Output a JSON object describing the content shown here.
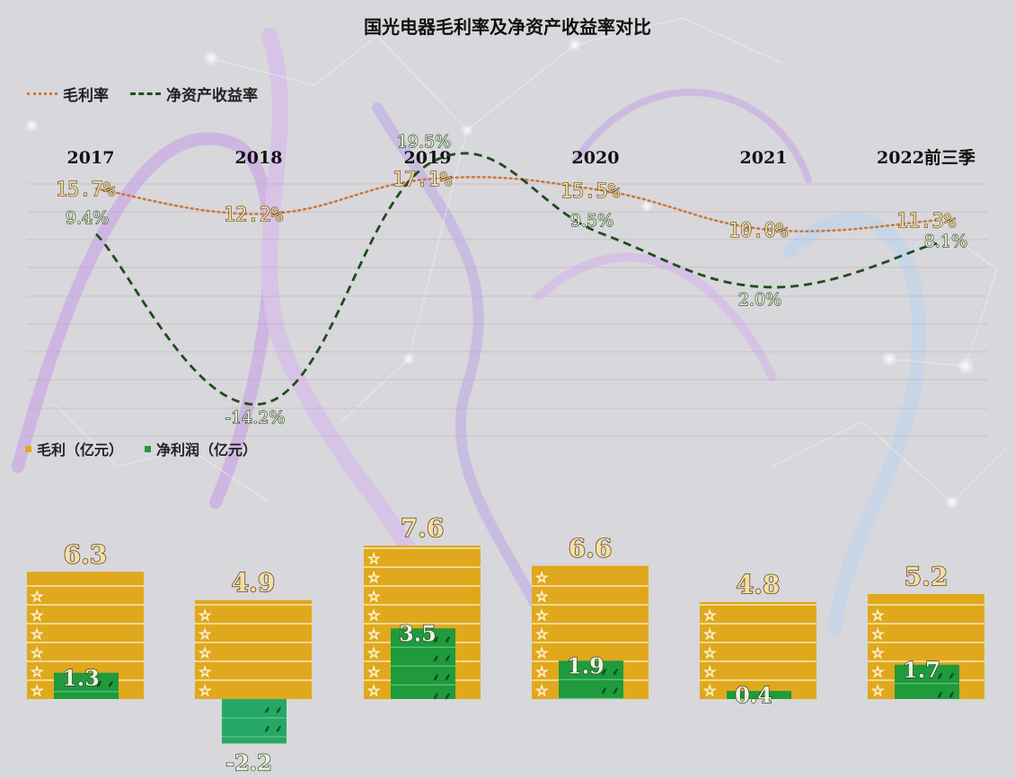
{
  "title": "国光电器毛利率及净资产收益率对比",
  "legend_top": {
    "gross_margin": "毛利率",
    "roe": "净资产收益率"
  },
  "legend_bottom": {
    "gross_profit": "毛利（亿元）",
    "net_profit": "净利润（亿元）"
  },
  "colors": {
    "gross_margin_line": "#c8793a",
    "roe_line": "#1f4d1c",
    "gross_profit_bar": "#e0a81c",
    "net_profit_bar": "#1f9a3c",
    "label_fill": "#f2dfa6",
    "label_stroke": "#4a2a00"
  },
  "chart_data": [
    {
      "type": "line",
      "x": [
        "2017",
        "2018",
        "2019",
        "2020",
        "2021",
        "2022前三季"
      ],
      "series": [
        {
          "name": "毛利率",
          "values": [
            15.7,
            12.2,
            17.1,
            15.5,
            10.0,
            11.3
          ],
          "labels": [
            "15.7%",
            "12.2%",
            "17.1%",
            "15.5%",
            "10.0%",
            "11.3%"
          ]
        },
        {
          "name": "净资产收益率",
          "values": [
            9.4,
            -14.2,
            19.5,
            9.5,
            2.0,
            8.1
          ],
          "labels": [
            "9.4%",
            "-14.2%",
            "19.5%",
            "9.5%",
            "2.0%",
            "8.1%"
          ]
        }
      ]
    },
    {
      "type": "bar",
      "categories": [
        "2017",
        "2018",
        "2019",
        "2020",
        "2021",
        "2022前三季"
      ],
      "series": [
        {
          "name": "毛利（亿元）",
          "values": [
            6.3,
            4.9,
            7.6,
            6.6,
            4.8,
            5.2
          ],
          "labels": [
            "6.3",
            "4.9",
            "7.6",
            "6.6",
            "4.8",
            "5.2"
          ]
        },
        {
          "name": "净利润（亿元）",
          "values": [
            1.3,
            -2.2,
            3.5,
            1.9,
            0.4,
            1.7
          ],
          "labels": [
            "1.3",
            "-2.2",
            "3.5",
            "1.9",
            "0.4",
            "1.7"
          ]
        }
      ]
    }
  ]
}
